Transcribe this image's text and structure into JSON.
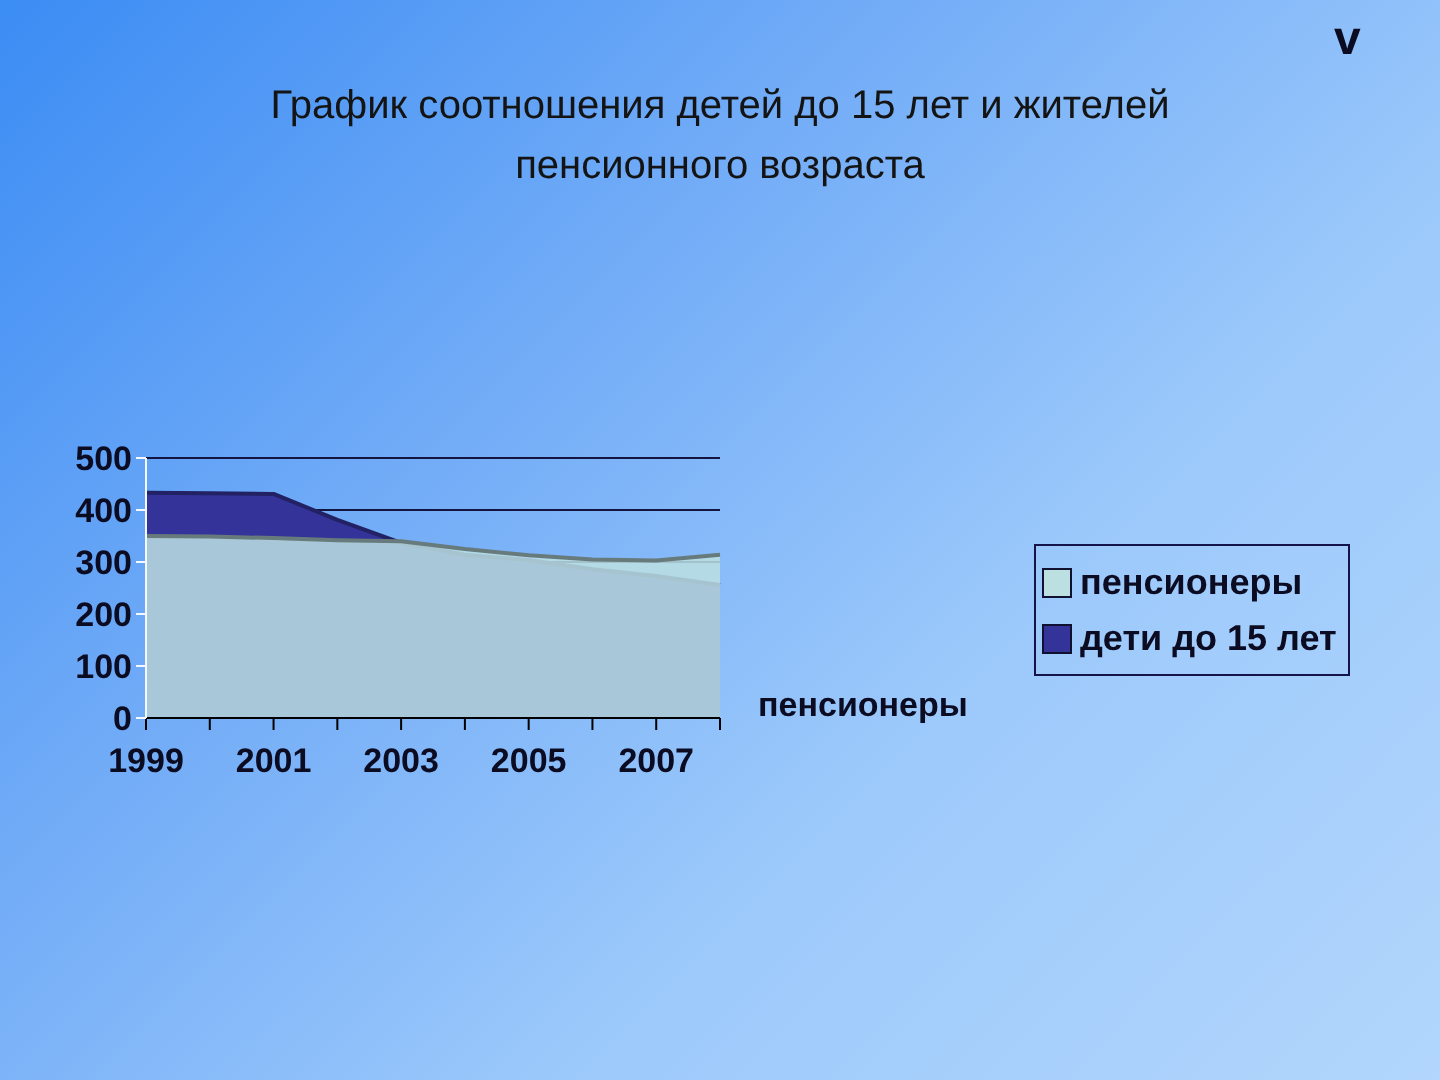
{
  "chart_data": {
    "type": "area",
    "title": "График соотношения детей до 15 лет и жителей пенсионного возраста",
    "categories": [
      "1999",
      null,
      "2001",
      null,
      "2003",
      null,
      "2005",
      null,
      "2007",
      null
    ],
    "series": [
      {
        "name": "пенсионеры",
        "color": "#bce0e2",
        "values": [
          350,
          349,
          346,
          342,
          340,
          325,
          313,
          305,
          303,
          314
        ]
      },
      {
        "name": "дети до 15 лет",
        "color": "#333399",
        "values": [
          433,
          432,
          431,
          381,
          337,
          314,
          304,
          286,
          273,
          256
        ]
      }
    ],
    "ylim": [
      0,
      500
    ],
    "yticks": [
      0,
      100,
      200,
      300,
      400,
      500
    ],
    "grid": "y",
    "legend": "right",
    "annotations": [
      "пенсионеры",
      "v"
    ]
  }
}
